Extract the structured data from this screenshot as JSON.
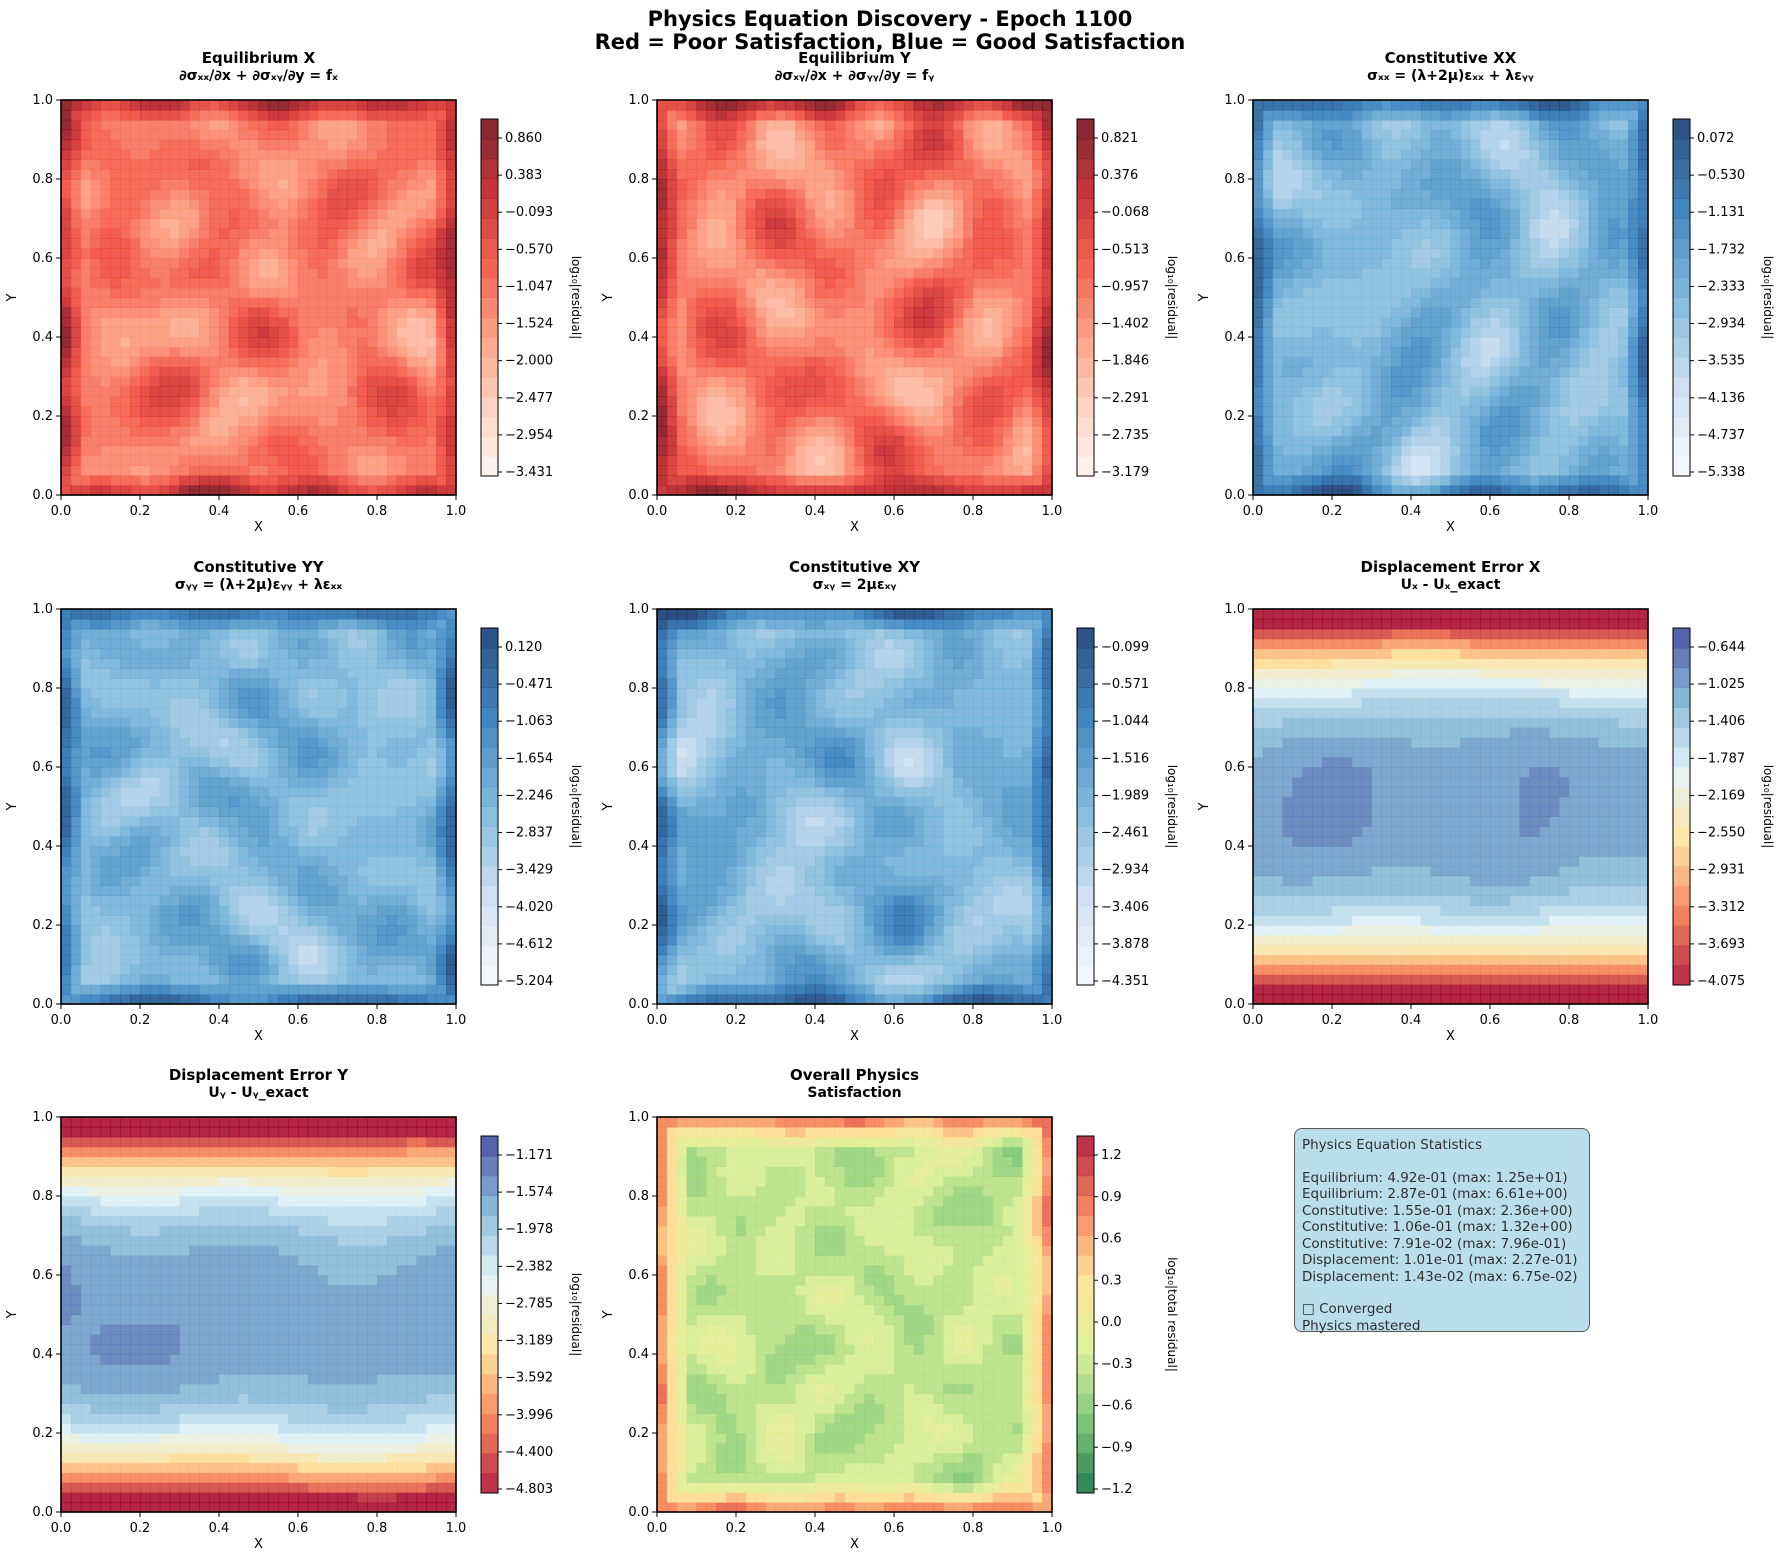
{
  "figure": {
    "title_line1": "Physics Equation Discovery - Epoch 1100",
    "title_line2": "Red = Poor Satisfaction, Blue = Good Satisfaction"
  },
  "colors": {
    "red_map": [
      "#fff5f0",
      "#fdcbb6",
      "#fc8f6f",
      "#f14432",
      "#bc141a",
      "#67000d"
    ],
    "blue_map": [
      "#f7fbff",
      "#c6dbef",
      "#6baed6",
      "#2171b5",
      "#08306b"
    ],
    "rdylbu": [
      "#a50026",
      "#f46d43",
      "#fee090",
      "#e0f3f8",
      "#74add1",
      "#313695"
    ],
    "rdylgn": [
      "#006837",
      "#66bd63",
      "#d9ef8b",
      "#fee08b",
      "#f46d43",
      "#a50026"
    ]
  },
  "chart_data": [
    {
      "type": "heatmap",
      "title": "Equilibrium X",
      "subtitle": "∂σₓₓ/∂x + ∂σₓᵧ/∂y = fₓ",
      "xlabel": "X",
      "ylabel": "Y",
      "xlim": [
        0,
        1
      ],
      "ylim": [
        0,
        1
      ],
      "xticks": [
        "0.0",
        "0.2",
        "0.4",
        "0.6",
        "0.8",
        "1.0"
      ],
      "yticks": [
        "0.0",
        "0.2",
        "0.4",
        "0.6",
        "0.8",
        "1.0"
      ],
      "colormap": "red_map",
      "colorbar_label": "log₁₀|residual|",
      "colorbar_ticks": [
        "0.860",
        "0.383",
        "−0.093",
        "−0.570",
        "−1.047",
        "−1.524",
        "−2.000",
        "−2.477",
        "−2.954",
        "−3.431"
      ],
      "range": [
        -3.431,
        1.1
      ],
      "seed": 11
    },
    {
      "type": "heatmap",
      "title": "Equilibrium Y",
      "subtitle": "∂σₓᵧ/∂x + ∂σᵧᵧ/∂y = fᵧ",
      "xlabel": "X",
      "ylabel": "Y",
      "xlim": [
        0,
        1
      ],
      "ylim": [
        0,
        1
      ],
      "xticks": [
        "0.0",
        "0.2",
        "0.4",
        "0.6",
        "0.8",
        "1.0"
      ],
      "yticks": [
        "0.0",
        "0.2",
        "0.4",
        "0.6",
        "0.8",
        "1.0"
      ],
      "colormap": "red_map",
      "colorbar_label": "log₁₀|residual|",
      "colorbar_ticks": [
        "0.821",
        "0.376",
        "−0.068",
        "−0.513",
        "−0.957",
        "−1.402",
        "−1.846",
        "−2.291",
        "−2.735",
        "−3.179"
      ],
      "range": [
        -3.4,
        0.821
      ],
      "seed": 23
    },
    {
      "type": "heatmap",
      "title": "Constitutive XX",
      "subtitle": "σₓₓ = (λ+2μ)εₓₓ + λεᵧᵧ",
      "xlabel": "X",
      "ylabel": "Y",
      "xlim": [
        0,
        1
      ],
      "ylim": [
        0,
        1
      ],
      "xticks": [
        "0.0",
        "0.2",
        "0.4",
        "0.6",
        "0.8",
        "1.0"
      ],
      "yticks": [
        "0.0",
        "0.2",
        "0.4",
        "0.6",
        "0.8",
        "1.0"
      ],
      "colormap": "blue_map",
      "colorbar_label": "log₁₀|residual|",
      "colorbar_ticks": [
        "0.072",
        "−0.530",
        "−1.131",
        "−1.732",
        "−2.333",
        "−2.934",
        "−3.535",
        "−4.136",
        "−4.737",
        "−5.338"
      ],
      "range": [
        -5.338,
        0.4
      ],
      "seed": 37
    },
    {
      "type": "heatmap",
      "title": "Constitutive YY",
      "subtitle": "σᵧᵧ = (λ+2μ)εᵧᵧ + λεₓₓ",
      "xlabel": "X",
      "ylabel": "Y",
      "xlim": [
        0,
        1
      ],
      "ylim": [
        0,
        1
      ],
      "xticks": [
        "0.0",
        "0.2",
        "0.4",
        "0.6",
        "0.8",
        "1.0"
      ],
      "yticks": [
        "0.0",
        "0.2",
        "0.4",
        "0.6",
        "0.8",
        "1.0"
      ],
      "colormap": "blue_map",
      "colorbar_label": "log₁₀|residual|",
      "colorbar_ticks": [
        "0.120",
        "−0.471",
        "−1.063",
        "−1.654",
        "−2.246",
        "−2.837",
        "−3.429",
        "−4.020",
        "−4.612",
        "−5.204"
      ],
      "range": [
        -5.5,
        0.12
      ],
      "seed": 41
    },
    {
      "type": "heatmap",
      "title": "Constitutive XY",
      "subtitle": "σₓᵧ = 2μεₓᵧ",
      "xlabel": "X",
      "ylabel": "Y",
      "xlim": [
        0,
        1
      ],
      "ylim": [
        0,
        1
      ],
      "xticks": [
        "0.0",
        "0.2",
        "0.4",
        "0.6",
        "0.8",
        "1.0"
      ],
      "yticks": [
        "0.0",
        "0.2",
        "0.4",
        "0.6",
        "0.8",
        "1.0"
      ],
      "colormap": "blue_map",
      "colorbar_label": "log₁₀|residual|",
      "colorbar_ticks": [
        "−0.099",
        "−0.571",
        "−1.044",
        "−1.516",
        "−1.989",
        "−2.461",
        "−2.934",
        "−3.406",
        "−3.878",
        "−4.351"
      ],
      "range": [
        -4.6,
        -0.099
      ],
      "seed": 53
    },
    {
      "type": "heatmap",
      "title": "Displacement Error X",
      "subtitle": "Uₓ - Uₓ_exact",
      "xlabel": "X",
      "ylabel": "Y",
      "xlim": [
        0,
        1
      ],
      "ylim": [
        0,
        1
      ],
      "xticks": [
        "0.0",
        "0.2",
        "0.4",
        "0.6",
        "0.8",
        "1.0"
      ],
      "yticks": [
        "0.0",
        "0.2",
        "0.4",
        "0.6",
        "0.8",
        "1.0"
      ],
      "colormap": "rdylbu",
      "colorbar_label": "log₁₀|residual|",
      "colorbar_ticks": [
        "−0.644",
        "−1.025",
        "−1.406",
        "−1.787",
        "−2.169",
        "−2.550",
        "−2.931",
        "−3.312",
        "−3.693",
        "−4.075"
      ],
      "range": [
        -4.3,
        -0.644
      ],
      "seed": 67
    },
    {
      "type": "heatmap",
      "title": "Displacement Error Y",
      "subtitle": "Uᵧ - Uᵧ_exact",
      "xlabel": "X",
      "ylabel": "Y",
      "xlim": [
        0,
        1
      ],
      "ylim": [
        0,
        1
      ],
      "xticks": [
        "0.0",
        "0.2",
        "0.4",
        "0.6",
        "0.8",
        "1.0"
      ],
      "yticks": [
        "0.0",
        "0.2",
        "0.4",
        "0.6",
        "0.8",
        "1.0"
      ],
      "colormap": "rdylbu",
      "colorbar_label": "log₁₀|residual|",
      "colorbar_ticks": [
        "−1.171",
        "−1.574",
        "−1.978",
        "−2.382",
        "−2.785",
        "−3.189",
        "−3.592",
        "−3.996",
        "−4.400",
        "−4.803"
      ],
      "range": [
        -5.0,
        -1.171
      ],
      "seed": 79
    },
    {
      "type": "heatmap",
      "title": "Overall Physics",
      "subtitle": "Satisfaction",
      "xlabel": "X",
      "ylabel": "Y",
      "xlim": [
        0,
        1
      ],
      "ylim": [
        0,
        1
      ],
      "xticks": [
        "0.0",
        "0.2",
        "0.4",
        "0.6",
        "0.8",
        "1.0"
      ],
      "yticks": [
        "0.0",
        "0.2",
        "0.4",
        "0.6",
        "0.8",
        "1.0"
      ],
      "colormap": "rdylgn",
      "colorbar_label": "log₁₀|total residual|",
      "colorbar_ticks": [
        "1.2",
        "0.9",
        "0.6",
        "0.3",
        "0.0",
        "−0.3",
        "−0.6",
        "−0.9",
        "−1.2"
      ],
      "range": [
        -1.3,
        1.35
      ],
      "seed": 97
    }
  ],
  "stats": {
    "title": "Physics Equation Statistics",
    "lines": [
      "Equilibrium: 4.92e-01 (max: 1.25e+01)",
      "Equilibrium: 2.87e-01 (max: 6.61e+00)",
      "Constitutive: 1.55e-01 (max: 2.36e+00)",
      "Constitutive: 1.06e-01 (max: 1.32e+00)",
      "Constitutive: 7.91e-02 (max: 7.96e-01)",
      "Displacement: 1.01e-01 (max: 2.27e-01)",
      "Displacement: 1.43e-02 (max: 6.75e-02)"
    ],
    "status_glyph": "□",
    "status": "Converged",
    "note": "Physics mastered"
  }
}
